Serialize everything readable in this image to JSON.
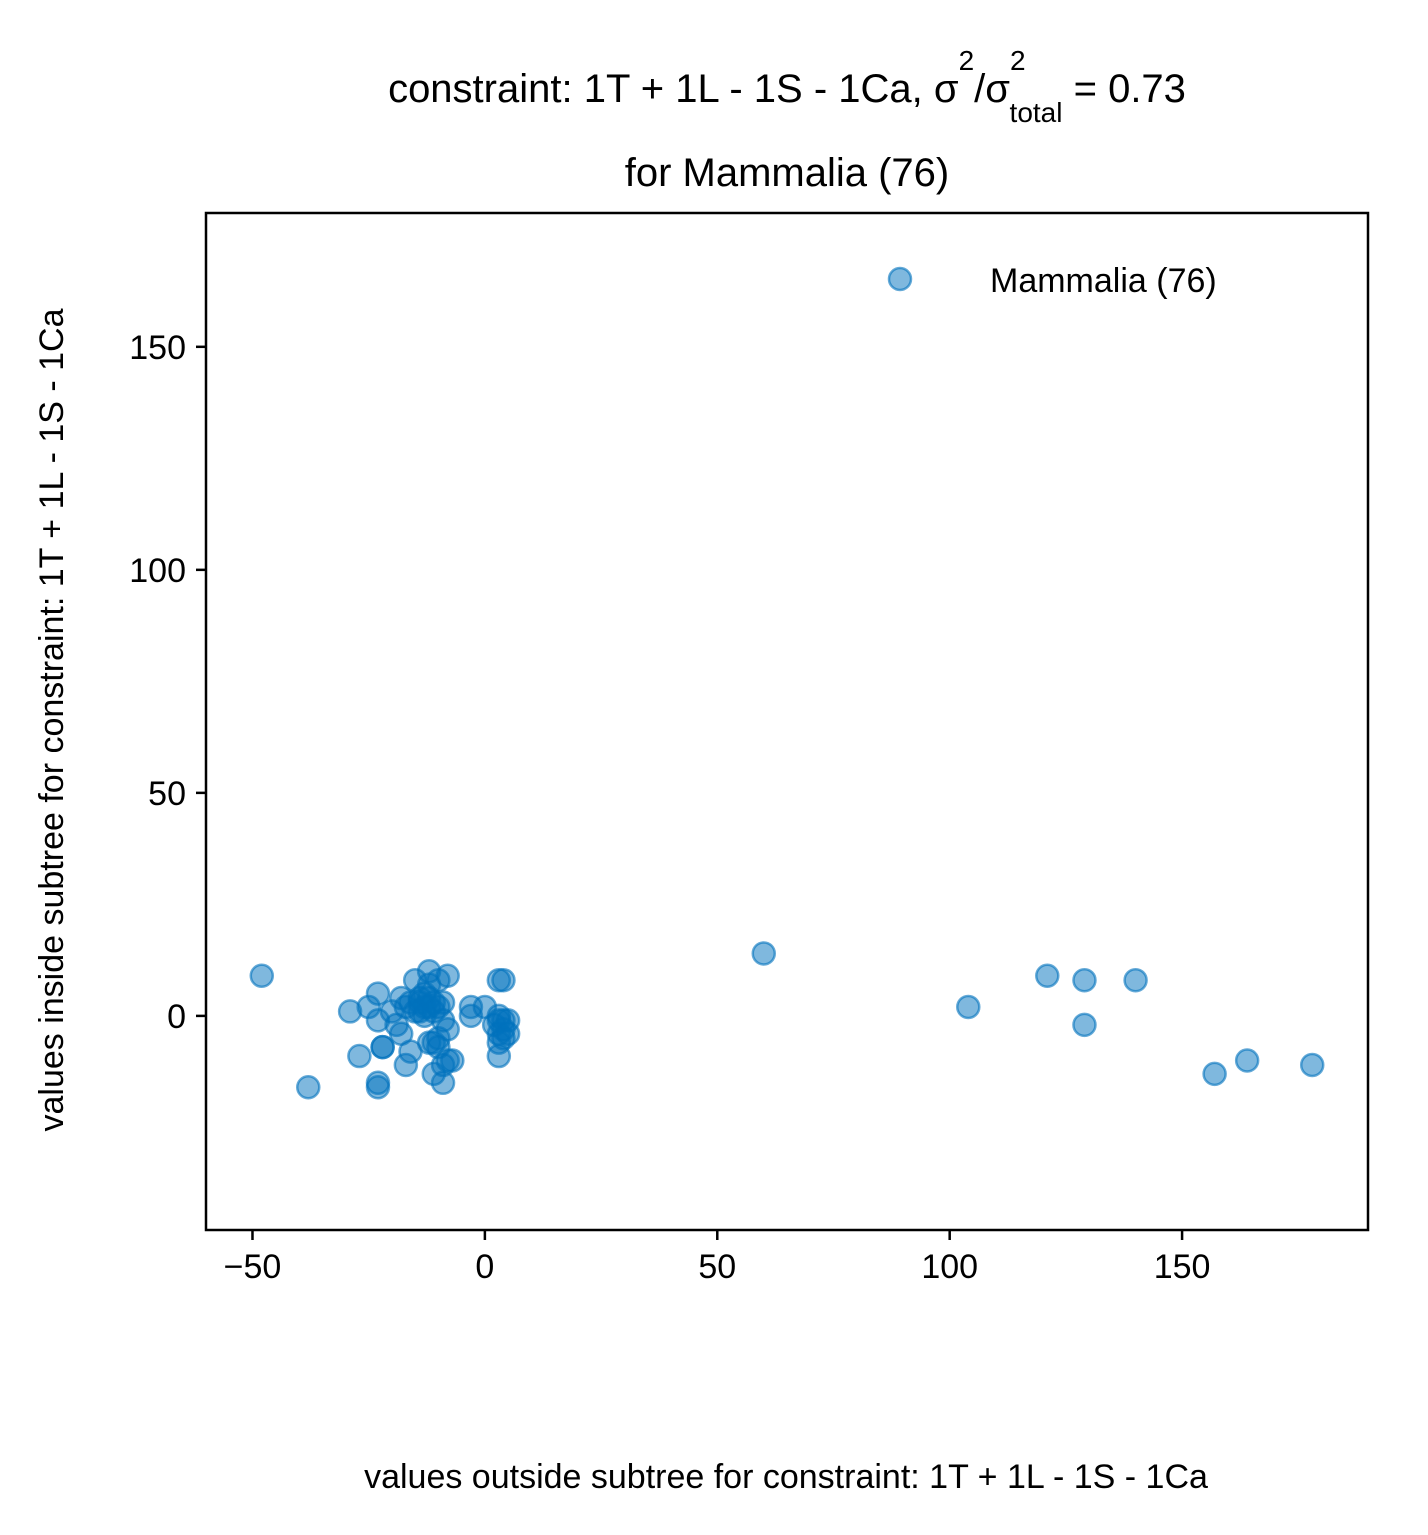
{
  "chart_data": {
    "type": "scatter",
    "title": {
      "line1_prefix": "constraint: 1T + 1L - 1S - 1Ca, σ",
      "sup1": "2",
      "mid": "/σ",
      "sup2": "2",
      "sub": "total",
      "suffix": " =  0.73",
      "line2": "for Mammalia (76)"
    },
    "xlabel": "values outside subtree for constraint: 1T + 1L - 1S - 1Ca",
    "ylabel": "values inside subtree for constraint: 1T + 1L - 1S - 1Ca",
    "xlim": [
      -60,
      190
    ],
    "ylim": [
      -48,
      180
    ],
    "xticks": [
      -50,
      0,
      50,
      100,
      150
    ],
    "xtick_labels": [
      "−50",
      "0",
      "50",
      "100",
      "150"
    ],
    "yticks": [
      0,
      50,
      100,
      150
    ],
    "ytick_labels": [
      "0",
      "50",
      "100",
      "150"
    ],
    "grid": false,
    "legend_position": "top-right",
    "series": [
      {
        "name": "Mammalia (76)",
        "color": "#0072bd",
        "points": [
          {
            "x": -48,
            "y": 9
          },
          {
            "x": -38,
            "y": -16
          },
          {
            "x": -29,
            "y": 1
          },
          {
            "x": -27,
            "y": -9
          },
          {
            "x": -25,
            "y": 2
          },
          {
            "x": -23,
            "y": 5
          },
          {
            "x": -23,
            "y": -1
          },
          {
            "x": -23,
            "y": -15
          },
          {
            "x": -23,
            "y": -16
          },
          {
            "x": -22,
            "y": -7
          },
          {
            "x": -22,
            "y": -7
          },
          {
            "x": -20,
            "y": 1
          },
          {
            "x": -19,
            "y": -2
          },
          {
            "x": -18,
            "y": -4
          },
          {
            "x": -18,
            "y": 4
          },
          {
            "x": -17,
            "y": 2
          },
          {
            "x": -17,
            "y": -11
          },
          {
            "x": -16,
            "y": 3
          },
          {
            "x": -16,
            "y": -8
          },
          {
            "x": -15,
            "y": 8
          },
          {
            "x": -15,
            "y": 1
          },
          {
            "x": -14,
            "y": 4
          },
          {
            "x": -14,
            "y": 3
          },
          {
            "x": -14,
            "y": 1
          },
          {
            "x": -13,
            "y": 5
          },
          {
            "x": -13,
            "y": 2
          },
          {
            "x": -13,
            "y": 0
          },
          {
            "x": -12,
            "y": 10
          },
          {
            "x": -12,
            "y": 7
          },
          {
            "x": -12,
            "y": 4
          },
          {
            "x": -12,
            "y": 2
          },
          {
            "x": -12,
            "y": -6
          },
          {
            "x": -11,
            "y": 3
          },
          {
            "x": -11,
            "y": 1
          },
          {
            "x": -11,
            "y": -6
          },
          {
            "x": -11,
            "y": -13
          },
          {
            "x": -10,
            "y": 8
          },
          {
            "x": -10,
            "y": 2
          },
          {
            "x": -10,
            "y": -5
          },
          {
            "x": -10,
            "y": -7
          },
          {
            "x": -9,
            "y": 3
          },
          {
            "x": -9,
            "y": -1
          },
          {
            "x": -9,
            "y": -11
          },
          {
            "x": -9,
            "y": -15
          },
          {
            "x": -8,
            "y": 9
          },
          {
            "x": -8,
            "y": -3
          },
          {
            "x": -8,
            "y": -10
          },
          {
            "x": -7,
            "y": -10
          },
          {
            "x": -3,
            "y": 2
          },
          {
            "x": -3,
            "y": 0
          },
          {
            "x": 0,
            "y": 2
          },
          {
            "x": 2,
            "y": -2
          },
          {
            "x": 3,
            "y": 8
          },
          {
            "x": 3,
            "y": 0
          },
          {
            "x": 3,
            "y": -1
          },
          {
            "x": 3,
            "y": -4
          },
          {
            "x": 3,
            "y": -6
          },
          {
            "x": 3,
            "y": -9
          },
          {
            "x": 4,
            "y": 8
          },
          {
            "x": 4,
            "y": -1
          },
          {
            "x": 4,
            "y": -3
          },
          {
            "x": 4,
            "y": -5
          },
          {
            "x": 5,
            "y": -1
          },
          {
            "x": 5,
            "y": -4
          },
          {
            "x": 60,
            "y": 14
          },
          {
            "x": 104,
            "y": 2
          },
          {
            "x": 121,
            "y": 9
          },
          {
            "x": 129,
            "y": 8
          },
          {
            "x": 129,
            "y": -2
          },
          {
            "x": 140,
            "y": 8
          },
          {
            "x": 157,
            "y": -13
          },
          {
            "x": 164,
            "y": -10
          },
          {
            "x": 178,
            "y": -11
          }
        ]
      }
    ]
  }
}
